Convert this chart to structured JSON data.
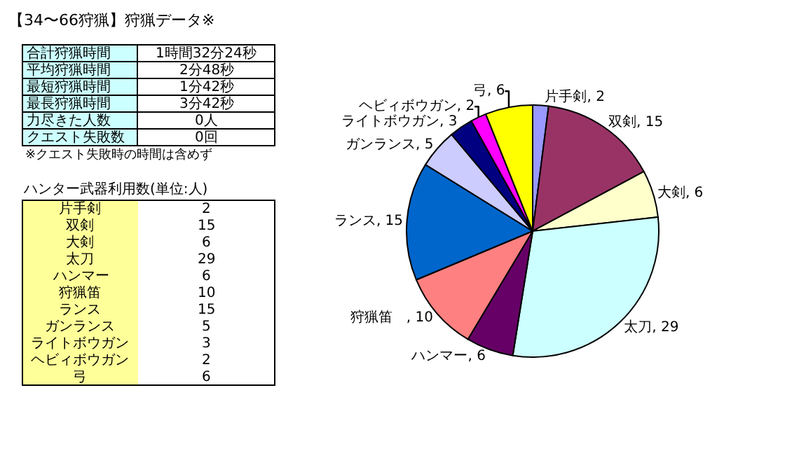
{
  "chart_data": {
    "type": "pie",
    "title": "【34〜66狩猟】狩猟データ※",
    "annotations": [
      "合計狩猟時間",
      "1時間32分24秒",
      "平均狩猟時間",
      "2分48秒",
      "最短狩猟時間",
      "1分42秒",
      "最長狩猟時間",
      "3分42秒",
      "力尽きた人数",
      "0人",
      "クエスト失敗数",
      "0回",
      "※クエスト失敗時の時間は含めず",
      "ハンター武器利用数(単位:人)",
      "片手剣",
      "2",
      "双剣",
      "15",
      "大剣",
      "6",
      "太刀",
      "29",
      "ハンマー",
      "6",
      "狩猟笛",
      "10",
      "ランス",
      "15",
      "ガンランス",
      "5",
      "ライトボウガン",
      "3",
      "ヘビィボウガン",
      "2",
      "弓",
      "6"
    ],
    "categories": [
      "片手剣, 2",
      "双剣, 15",
      "大剣, 6",
      "太刀, 29",
      "ハンマー, 6",
      "狩猟笛　, 10",
      "ランス, 15",
      "ガンランス, 5",
      "ライトボウガン, 3",
      "ヘビィボウガン, 2",
      "弓, 6"
    ],
    "values": [
      2,
      15,
      6,
      29,
      6,
      10,
      15,
      5,
      3,
      2,
      6
    ],
    "colors": [
      "#9999ff",
      "#993366",
      "#ffffcc",
      "#ccffff",
      "#660066",
      "#ff8080",
      "#0066cc",
      "#ccccff",
      "#000080",
      "#ff00ff",
      "#ffff00"
    ]
  }
}
